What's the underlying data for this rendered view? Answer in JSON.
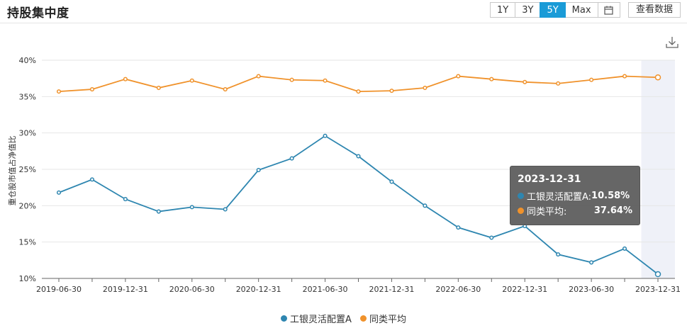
{
  "header": {
    "title": "持股集中度",
    "range_buttons": [
      "1Y",
      "3Y",
      "5Y",
      "Max"
    ],
    "active_range": "5Y",
    "view_data_label": "查看数据"
  },
  "tooltip": {
    "date": "2023-12-31",
    "rows": [
      {
        "label": "工银灵活配置A:",
        "value": "10.58%"
      },
      {
        "label": "同类平均:",
        "value": "37.64%"
      }
    ]
  },
  "chart_data": {
    "type": "line",
    "title": "",
    "xlabel": "",
    "ylabel": "重仓股市值占净值比",
    "ylim": [
      10,
      40
    ],
    "y_ticks": [
      "10%",
      "15%",
      "20%",
      "25%",
      "30%",
      "35%",
      "40%"
    ],
    "x_tick_labels": [
      "2019-06-30",
      "2019-12-31",
      "2020-06-30",
      "2020-12-31",
      "2021-06-30",
      "2021-12-31",
      "2022-06-30",
      "2022-12-31",
      "2023-06-30",
      "2023-12-31"
    ],
    "x": [
      "2019-06-30",
      "2019-09-30",
      "2019-12-31",
      "2020-03-31",
      "2020-06-30",
      "2020-09-30",
      "2020-12-31",
      "2021-03-31",
      "2021-06-30",
      "2021-09-30",
      "2021-12-31",
      "2022-03-31",
      "2022-06-30",
      "2022-09-30",
      "2022-12-31",
      "2023-03-31",
      "2023-06-30",
      "2023-09-30",
      "2023-12-31"
    ],
    "series": [
      {
        "name": "工银灵活配置A",
        "color": "#2e86b0",
        "values": [
          21.8,
          23.6,
          20.9,
          19.2,
          19.8,
          19.5,
          24.9,
          26.5,
          29.6,
          26.8,
          23.3,
          20.0,
          17.0,
          15.6,
          17.2,
          13.3,
          12.2,
          14.1,
          10.58
        ]
      },
      {
        "name": "同类平均",
        "color": "#f0922b",
        "values": [
          35.7,
          36.0,
          37.4,
          36.2,
          37.2,
          36.0,
          37.8,
          37.3,
          37.2,
          35.7,
          35.8,
          36.2,
          37.8,
          37.4,
          37.0,
          36.8,
          37.3,
          37.8,
          37.64
        ]
      }
    ],
    "highlight_index": 18,
    "grid": true,
    "legend_position": "bottom"
  }
}
